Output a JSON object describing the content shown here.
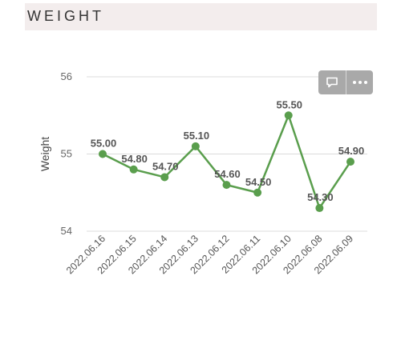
{
  "header": {
    "title": "WEIGHT"
  },
  "toolbar": {
    "comment_icon": "comment-icon",
    "more_icon": "more-dots-icon"
  },
  "colors": {
    "line": "#5a9e4d",
    "grid": "#dcdcdc",
    "header_bg": "#f3eded"
  },
  "chart_data": {
    "type": "line",
    "categories": [
      "2022.06.16",
      "2022.06.15",
      "2022.06.14",
      "2022.06.13",
      "2022.06.12",
      "2022.06.11",
      "2022.06.10",
      "2022.06.08",
      "2022.06.09"
    ],
    "values": [
      55.0,
      54.8,
      54.7,
      55.1,
      54.6,
      54.5,
      55.5,
      54.3,
      54.9
    ],
    "data_labels": [
      "55.00",
      "54.80",
      "54.70",
      "55.10",
      "54.60",
      "54.50",
      "55.50",
      "54.30",
      "54.90"
    ],
    "ylabel": "Weight",
    "xlabel": "",
    "ylim": [
      54,
      56
    ],
    "yticks": [
      "54",
      "55",
      "56"
    ],
    "grid": true
  }
}
